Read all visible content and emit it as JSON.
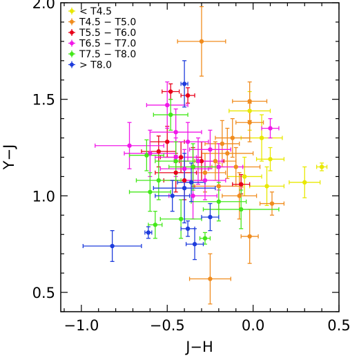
{
  "chart_data": {
    "type": "scatter",
    "title": "",
    "xlabel": "J−H",
    "ylabel": "Y−J",
    "xlim": [
      -1.12,
      0.5
    ],
    "ylim": [
      0.4,
      2.0
    ],
    "xticks": [
      -1.0,
      -0.5,
      0.0,
      0.5
    ],
    "xtick_labels": [
      "−1.0",
      "−0.5",
      "0.0",
      "0.5"
    ],
    "yticks": [
      0.5,
      1.0,
      1.5,
      2.0
    ],
    "ytick_labels": [
      "0.5",
      "1.0",
      "1.5",
      "2.0"
    ],
    "grid": false,
    "legend_position": "top-left",
    "series": [
      {
        "name": "< T4.5",
        "color": "#e8e800",
        "points": [
          {
            "x": 0.4,
            "y": 1.15,
            "xerr": 0.03,
            "yerr": 0.02
          },
          {
            "x": 0.3,
            "y": 1.07,
            "xerr": 0.09,
            "yerr": 0.08
          },
          {
            "x": 0.08,
            "y": 1.05,
            "xerr": 0.1,
            "yerr": 0.1
          },
          {
            "x": -0.02,
            "y": 1.44,
            "xerr": 0.12,
            "yerr": 0.1
          },
          {
            "x": 0.05,
            "y": 1.3,
            "xerr": 0.12,
            "yerr": 0.12
          },
          {
            "x": 0.1,
            "y": 1.19,
            "xerr": 0.08,
            "yerr": 0.06
          },
          {
            "x": -0.05,
            "y": 1.1,
            "xerr": 0.1,
            "yerr": 0.1
          }
        ]
      },
      {
        "name": "T4.5 − T5.0",
        "color": "#f08c1e",
        "points": [
          {
            "x": -0.3,
            "y": 1.8,
            "xerr": 0.14,
            "yerr": 0.18
          },
          {
            "x": -0.25,
            "y": 0.57,
            "xerr": 0.12,
            "yerr": 0.13
          },
          {
            "x": -0.02,
            "y": 0.79,
            "xerr": 0.05,
            "yerr": 0.14
          },
          {
            "x": -0.02,
            "y": 1.49,
            "xerr": 0.1,
            "yerr": 0.1
          },
          {
            "x": 0.11,
            "y": 0.96,
            "xerr": 0.07,
            "yerr": 0.06
          },
          {
            "x": -0.15,
            "y": 1.22,
            "xerr": 0.15,
            "yerr": 0.13
          },
          {
            "x": -0.1,
            "y": 1.15,
            "xerr": 0.14,
            "yerr": 0.1
          },
          {
            "x": -0.2,
            "y": 1.05,
            "xerr": 0.14,
            "yerr": 0.12
          },
          {
            "x": -0.02,
            "y": 1.38,
            "xerr": 0.08,
            "yerr": 0.1
          },
          {
            "x": -0.28,
            "y": 1.12,
            "xerr": 0.12,
            "yerr": 0.1
          },
          {
            "x": -0.12,
            "y": 1.3,
            "xerr": 0.1,
            "yerr": 0.1
          },
          {
            "x": -0.08,
            "y": 1.0,
            "xerr": 0.1,
            "yerr": 0.12
          },
          {
            "x": -0.22,
            "y": 1.18,
            "xerr": 0.12,
            "yerr": 0.1
          },
          {
            "x": -0.18,
            "y": 1.27,
            "xerr": 0.1,
            "yerr": 0.12
          }
        ]
      },
      {
        "name": "T5.5 − T6.0",
        "color": "#e8001a",
        "points": [
          {
            "x": -0.48,
            "y": 1.54,
            "xerr": 0.05,
            "yerr": 0.04
          },
          {
            "x": -0.38,
            "y": 1.52,
            "xerr": 0.04,
            "yerr": 0.04
          },
          {
            "x": -0.5,
            "y": 1.28,
            "xerr": 0.1,
            "yerr": 0.08
          },
          {
            "x": -0.42,
            "y": 1.2,
            "xerr": 0.12,
            "yerr": 0.08
          },
          {
            "x": -0.35,
            "y": 1.15,
            "xerr": 0.1,
            "yerr": 0.1
          },
          {
            "x": -0.3,
            "y": 1.18,
            "xerr": 0.13,
            "yerr": 0.1
          },
          {
            "x": -0.45,
            "y": 1.12,
            "xerr": 0.12,
            "yerr": 0.1
          },
          {
            "x": -0.07,
            "y": 1.06,
            "xerr": 0.05,
            "yerr": 0.05
          },
          {
            "x": -0.55,
            "y": 1.23,
            "xerr": 0.1,
            "yerr": 0.08
          },
          {
            "x": -0.4,
            "y": 1.08,
            "xerr": 0.12,
            "yerr": 0.1
          }
        ]
      },
      {
        "name": "T6.5 − T7.0",
        "color": "#f018e8",
        "points": [
          {
            "x": -0.72,
            "y": 1.26,
            "xerr": 0.2,
            "yerr": 0.12
          },
          {
            "x": -0.6,
            "y": 1.22,
            "xerr": 0.15,
            "yerr": 0.12
          },
          {
            "x": -0.5,
            "y": 1.47,
            "xerr": 0.12,
            "yerr": 0.12
          },
          {
            "x": -0.45,
            "y": 1.33,
            "xerr": 0.15,
            "yerr": 0.12
          },
          {
            "x": -0.38,
            "y": 1.28,
            "xerr": 0.12,
            "yerr": 0.1
          },
          {
            "x": -0.32,
            "y": 1.18,
            "xerr": 0.14,
            "yerr": 0.12
          },
          {
            "x": -0.28,
            "y": 1.08,
            "xerr": 0.12,
            "yerr": 0.1
          },
          {
            "x": -0.35,
            "y": 1.0,
            "xerr": 0.14,
            "yerr": 0.12
          },
          {
            "x": -0.45,
            "y": 1.2,
            "xerr": 0.12,
            "yerr": 0.1
          },
          {
            "x": 0.1,
            "y": 1.35,
            "xerr": 0.05,
            "yerr": 0.05
          },
          {
            "x": -0.2,
            "y": 1.15,
            "xerr": 0.14,
            "yerr": 0.12
          },
          {
            "x": -0.25,
            "y": 1.24,
            "xerr": 0.12,
            "yerr": 0.1
          },
          {
            "x": -0.4,
            "y": 1.14,
            "xerr": 0.14,
            "yerr": 0.1
          }
        ]
      },
      {
        "name": "T7.5 − T8.0",
        "color": "#44e81a",
        "points": [
          {
            "x": -0.57,
            "y": 0.85,
            "xerr": 0.04,
            "yerr": 0.07
          },
          {
            "x": -0.42,
            "y": 0.88,
            "xerr": 0.12,
            "yerr": 0.1
          },
          {
            "x": -0.28,
            "y": 0.78,
            "xerr": 0.03,
            "yerr": 0.03
          },
          {
            "x": -0.2,
            "y": 0.97,
            "xerr": 0.16,
            "yerr": 0.1
          },
          {
            "x": -0.6,
            "y": 1.02,
            "xerr": 0.12,
            "yerr": 0.1
          },
          {
            "x": -0.55,
            "y": 1.08,
            "xerr": 0.13,
            "yerr": 0.1
          },
          {
            "x": -0.45,
            "y": 1.18,
            "xerr": 0.12,
            "yerr": 0.1
          },
          {
            "x": -0.35,
            "y": 1.15,
            "xerr": 0.14,
            "yerr": 0.12
          },
          {
            "x": -0.62,
            "y": 1.21,
            "xerr": 0.1,
            "yerr": 0.08
          },
          {
            "x": -0.07,
            "y": 0.93,
            "xerr": 0.22,
            "yerr": 0.1
          },
          {
            "x": -0.48,
            "y": 1.42,
            "xerr": 0.1,
            "yerr": 0.08
          }
        ]
      },
      {
        "name": "> T8.0",
        "color": "#1e3cdc",
        "points": [
          {
            "x": -0.82,
            "y": 0.74,
            "xerr": 0.17,
            "yerr": 0.08
          },
          {
            "x": -0.61,
            "y": 0.81,
            "xerr": 0.02,
            "yerr": 0.03
          },
          {
            "x": -0.38,
            "y": 0.83,
            "xerr": 0.04,
            "yerr": 0.04
          },
          {
            "x": -0.34,
            "y": 0.75,
            "xerr": 0.05,
            "yerr": 0.08
          },
          {
            "x": -0.4,
            "y": 1.04,
            "xerr": 0.18,
            "yerr": 0.18
          },
          {
            "x": -0.47,
            "y": 1.0,
            "xerr": 0.1,
            "yerr": 0.08
          },
          {
            "x": -0.36,
            "y": 1.07,
            "xerr": 0.08,
            "yerr": 0.1
          },
          {
            "x": -0.25,
            "y": 0.89,
            "xerr": 0.05,
            "yerr": 0.07
          },
          {
            "x": -0.4,
            "y": 1.58,
            "xerr": 0.02,
            "yerr": 0.12
          }
        ]
      }
    ]
  }
}
